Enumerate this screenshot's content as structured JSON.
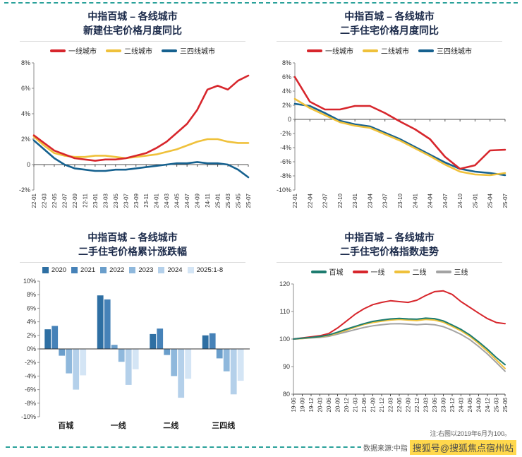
{
  "page": {
    "accent_color": "#2aa19a",
    "source_label": "数据来源:中指",
    "watermark": "搜狐号@搜狐焦点宿州站",
    "watermark_bg": "#ffd84d",
    "note_right": "注:右图以2019年6月为100。"
  },
  "chart_data": [
    {
      "type": "line",
      "title": "中指百城 – 各线城市",
      "subtitle": "新建住宅价格月度同比",
      "ylim": [
        -2,
        8
      ],
      "yticks": [
        8,
        6,
        4,
        2,
        0,
        -2
      ],
      "ytick_labels": [
        "8%",
        "6%",
        "4%",
        "2%",
        "0",
        "-2%"
      ],
      "axis_at": 0,
      "x": [
        "22-01",
        "22-03",
        "22-05",
        "22-07",
        "22-09",
        "22-11",
        "23-01",
        "23-03",
        "23-05",
        "23-07",
        "23-09",
        "23-11",
        "24-01",
        "24-03",
        "24-05",
        "24-07",
        "24-09",
        "24-11",
        "25-01",
        "25-03",
        "25-05",
        "25-07"
      ],
      "series": [
        {
          "name": "一线城市",
          "color": "#d7262c",
          "values": [
            2.3,
            1.7,
            1.1,
            0.8,
            0.5,
            0.4,
            0.3,
            0.4,
            0.4,
            0.5,
            0.7,
            0.9,
            1.3,
            1.8,
            2.5,
            3.2,
            4.3,
            5.9,
            6.2,
            5.9,
            6.6,
            7.0
          ]
        },
        {
          "name": "二线城市",
          "color": "#efc13b",
          "values": [
            2.2,
            1.5,
            0.9,
            0.7,
            0.6,
            0.6,
            0.7,
            0.7,
            0.6,
            0.5,
            0.6,
            0.7,
            0.8,
            1.0,
            1.2,
            1.5,
            1.8,
            2.0,
            2.0,
            1.8,
            1.7,
            1.7
          ]
        },
        {
          "name": "三四线城市",
          "color": "#16618f",
          "values": [
            1.9,
            1.2,
            0.5,
            0.0,
            -0.3,
            -0.4,
            -0.5,
            -0.5,
            -0.4,
            -0.4,
            -0.3,
            -0.2,
            -0.1,
            0.0,
            0.1,
            0.1,
            0.2,
            0.1,
            0.1,
            0.0,
            -0.4,
            -1.0
          ]
        }
      ]
    },
    {
      "type": "line",
      "title": "中指百城 – 各线城市",
      "subtitle": "二手住宅价格月度同比",
      "ylim": [
        -10,
        8
      ],
      "yticks": [
        8,
        6,
        4,
        2,
        0,
        -2,
        -4,
        -6,
        -8,
        -10
      ],
      "ytick_labels": [
        "8%",
        "6%",
        "4%",
        "2%",
        "0",
        "-2%",
        "-4%",
        "-6%",
        "-8%",
        "-10%"
      ],
      "axis_at": 0,
      "x": [
        "22-01",
        "22-04",
        "22-07",
        "22-10",
        "23-01",
        "23-04",
        "23-07",
        "23-10",
        "24-01",
        "24-04",
        "24-07",
        "24-10",
        "25-01",
        "25-04",
        "25-07"
      ],
      "series": [
        {
          "name": "一线城市",
          "color": "#d7262c",
          "values": [
            6.0,
            2.5,
            1.4,
            1.4,
            1.9,
            1.9,
            0.9,
            -0.3,
            -1.4,
            -2.8,
            -5.3,
            -7.0,
            -6.5,
            -4.4,
            -4.3
          ]
        },
        {
          "name": "二线城市",
          "color": "#efc13b",
          "values": [
            2.9,
            1.6,
            0.6,
            -0.4,
            -0.9,
            -1.2,
            -2.1,
            -3.0,
            -4.1,
            -5.2,
            -6.4,
            -7.4,
            -7.8,
            -7.9,
            -7.6
          ]
        },
        {
          "name": "三四线城市",
          "color": "#16618f",
          "values": [
            2.2,
            1.9,
            0.9,
            -0.2,
            -0.7,
            -1.0,
            -1.9,
            -2.8,
            -3.9,
            -5.0,
            -6.1,
            -7.0,
            -7.4,
            -7.6,
            -7.9
          ]
        }
      ]
    },
    {
      "type": "bar",
      "title": "中指百城 – 各线城市",
      "subtitle": "二手住宅价格累计涨跌幅",
      "ylim": [
        -10,
        10
      ],
      "yticks": [
        10,
        8,
        6,
        4,
        2,
        0,
        -2,
        -4,
        -6,
        -8,
        -10
      ],
      "ytick_labels": [
        "10%",
        "8%",
        "6%",
        "4%",
        "2%",
        "0%",
        "-2%",
        "-4%",
        "-6%",
        "-8%",
        "-10%"
      ],
      "axis_at": 0,
      "categories": [
        "百城",
        "一线",
        "二线",
        "三四线"
      ],
      "series": [
        {
          "name": "2020",
          "color": "#2e6fa3",
          "values": [
            2.9,
            7.9,
            2.2,
            2.0
          ]
        },
        {
          "name": "2021",
          "color": "#4682b8",
          "values": [
            3.4,
            7.3,
            3.0,
            2.3
          ]
        },
        {
          "name": "2022",
          "color": "#6a9ecb",
          "values": [
            -1.0,
            0.6,
            -0.9,
            -1.4
          ]
        },
        {
          "name": "2023",
          "color": "#8fb8dc",
          "values": [
            -3.6,
            -1.9,
            -4.0,
            -3.3
          ]
        },
        {
          "name": "2024",
          "color": "#b4d0ea",
          "values": [
            -6.0,
            -5.3,
            -7.2,
            -6.7
          ]
        },
        {
          "name": "2025:1-8",
          "color": "#d4e5f5",
          "values": [
            -3.9,
            -3.0,
            -4.4,
            -4.7
          ]
        }
      ]
    },
    {
      "type": "line",
      "title": "中指百城 – 各线城市",
      "subtitle": "二手住宅价格指数走势",
      "ylim": [
        80,
        120
      ],
      "yticks": [
        120,
        110,
        100,
        90,
        80
      ],
      "ytick_labels": [
        "120",
        "110",
        "100",
        "90",
        "80"
      ],
      "axis_at": 80,
      "x": [
        "19-06",
        "19-09",
        "19-12",
        "20-03",
        "20-06",
        "20-09",
        "20-12",
        "21-03",
        "21-06",
        "21-09",
        "21-12",
        "22-03",
        "22-06",
        "22-09",
        "22-12",
        "23-03",
        "23-06",
        "23-09",
        "23-12",
        "24-03",
        "24-06",
        "24-09",
        "24-12",
        "25-03",
        "25-06"
      ],
      "series": [
        {
          "name": "百城",
          "color": "#1d7c6f",
          "values": [
            100,
            100.3,
            100.6,
            100.9,
            101.5,
            102.5,
            103.6,
            104.6,
            105.6,
            106.4,
            106.9,
            107.3,
            107.5,
            107.3,
            107.2,
            107.6,
            107.4,
            106.6,
            105.1,
            103.5,
            101.5,
            99.0,
            96.3,
            93.3,
            90.7
          ]
        },
        {
          "name": "一线",
          "color": "#d7262c",
          "values": [
            100,
            100.4,
            100.8,
            101.2,
            102.0,
            104.0,
            106.5,
            109.0,
            111.0,
            112.5,
            113.3,
            113.9,
            113.6,
            113.3,
            114.1,
            115.8,
            117.2,
            117.5,
            116.2,
            113.6,
            111.5,
            109.4,
            107.4,
            106.0,
            105.6
          ]
        },
        {
          "name": "二线",
          "color": "#efc13b",
          "values": [
            100,
            100.2,
            100.5,
            100.8,
            101.3,
            102.2,
            103.2,
            104.3,
            105.3,
            106.0,
            106.5,
            106.9,
            107.1,
            106.9,
            106.7,
            107.1,
            106.9,
            106.1,
            104.6,
            103.0,
            101.0,
            98.4,
            95.6,
            92.4,
            89.3
          ]
        },
        {
          "name": "三线",
          "color": "#a3a3a3",
          "values": [
            100,
            100.2,
            100.4,
            100.6,
            101.0,
            101.8,
            102.6,
            103.4,
            104.2,
            104.8,
            105.2,
            105.5,
            105.6,
            105.4,
            105.2,
            105.4,
            105.2,
            104.5,
            103.2,
            101.7,
            99.8,
            97.3,
            94.6,
            91.5,
            88.3
          ]
        }
      ]
    }
  ]
}
